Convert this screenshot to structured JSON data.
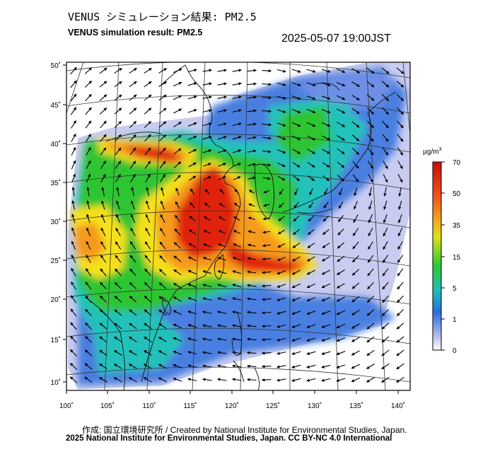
{
  "header": {
    "title_jp": "VENUS シミュレーション結果: PM2.5",
    "title_en": "VENUS simulation result: PM2.5",
    "timestamp": "2025-05-07 19:00JST"
  },
  "map": {
    "x_ticks": [
      "100˚",
      "105˚",
      "110˚",
      "115˚",
      "120˚",
      "125˚",
      "130˚",
      "135˚",
      "140˚"
    ],
    "y_ticks": [
      "50˚",
      "45˚",
      "40˚",
      "35˚",
      "30˚",
      "25˚",
      "20˚",
      "15˚",
      "10˚"
    ],
    "wind_arrows": "shown",
    "coastlines": "shown",
    "graticule": "shown"
  },
  "colorbar": {
    "unit_base": "μg/m",
    "unit_sup": "3",
    "ticks": [
      "70",
      "50",
      "35",
      "15",
      "5",
      "1",
      "0"
    ],
    "colors": [
      "#d41a0a",
      "#f5a01e",
      "#b8e21c",
      "#2ec830",
      "#1ec0b8",
      "#2b6fdc",
      "#d6d6f2",
      "#ffffff"
    ]
  },
  "footer": {
    "credit_line": "作成: 国立環境研究所 / Created by National Institute for Environmental Studies, Japan.",
    "license_line": "2025 National Institute for Environmental Studies, Japan. CC BY-NC 4.0 International"
  }
}
